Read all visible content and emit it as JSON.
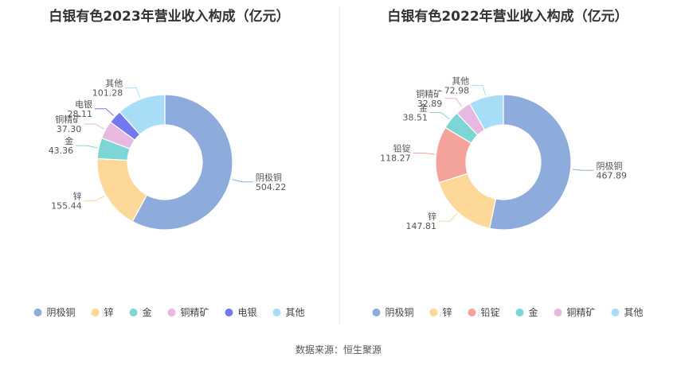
{
  "source": "数据来源：恒生聚源",
  "chart_data": [
    {
      "type": "pie",
      "title": "白银有色2023年营业收入构成（亿元）",
      "categories": [
        "阴极铜",
        "锌",
        "金",
        "铜精矿",
        "电银",
        "其他"
      ],
      "values": [
        504.22,
        155.44,
        43.36,
        37.3,
        28.11,
        101.28
      ],
      "value_labels": [
        "504.22",
        "155.44",
        "43.36",
        "37.30",
        "28.11",
        "101.28"
      ],
      "colors": [
        "#8eacdb",
        "#fdd898",
        "#7dd6d6",
        "#e7b8e0",
        "#7478ee",
        "#a8ddf7"
      ],
      "legend_position": "bottom"
    },
    {
      "type": "pie",
      "title": "白银有色2022年营业收入构成（亿元）",
      "categories": [
        "阴极铜",
        "锌",
        "铅锭",
        "金",
        "铜精矿",
        "其他"
      ],
      "values": [
        467.89,
        147.81,
        118.27,
        38.51,
        32.89,
        72.98
      ],
      "value_labels": [
        "467.89",
        "147.81",
        "118.27",
        "38.51",
        "32.89",
        "72.98"
      ],
      "colors": [
        "#8eacdb",
        "#fdd898",
        "#f4a39b",
        "#7dd6d6",
        "#e7b8e0",
        "#a8ddf7"
      ],
      "legend_position": "bottom"
    }
  ]
}
